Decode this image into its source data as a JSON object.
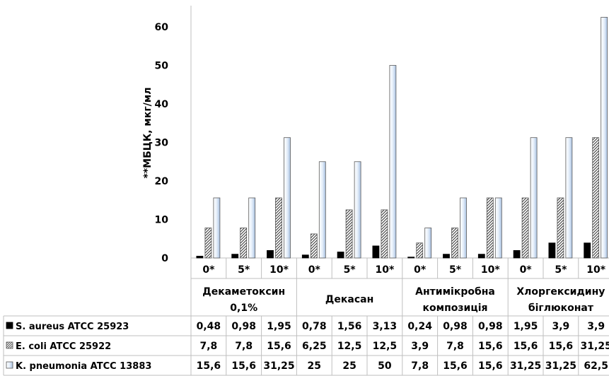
{
  "chart_data": {
    "type": "bar",
    "ylabel": "**МБЦК, мкг/мл",
    "ylim": [
      0,
      60
    ],
    "yticks": [
      0,
      10,
      20,
      30,
      40,
      50,
      60
    ],
    "groups": [
      {
        "label": "Декаметоксин 0,1%",
        "categories": [
          "0*",
          "5*",
          "10*"
        ]
      },
      {
        "label": "Декасан",
        "categories": [
          "0*",
          "5*",
          "10*"
        ]
      },
      {
        "label": "Антимікробна композиція",
        "categories": [
          "0*",
          "5*",
          "10*"
        ]
      },
      {
        "label": "Хлоргексидину біглюконат",
        "categories": [
          "0*",
          "5*",
          "10*"
        ]
      }
    ],
    "series": [
      {
        "name": "S. aureus ATCC 25923",
        "pattern": "solid",
        "color": "#000000",
        "values": [
          0.48,
          0.98,
          1.95,
          0.78,
          1.56,
          3.13,
          0.24,
          0.98,
          0.98,
          1.95,
          3.9,
          3.9
        ],
        "labels": [
          "0,48",
          "0,98",
          "1,95",
          "0,78",
          "1,56",
          "3,13",
          "0,24",
          "0,98",
          "0,98",
          "1,95",
          "3,9",
          "3,9"
        ]
      },
      {
        "name": "E. coli ATCC 25922",
        "pattern": "hatched",
        "color": "#555555",
        "values": [
          7.8,
          7.8,
          15.6,
          6.25,
          12.5,
          12.5,
          3.9,
          7.8,
          15.6,
          15.6,
          15.6,
          31.25
        ],
        "labels": [
          "7,8",
          "7,8",
          "15,6",
          "6,25",
          "12,5",
          "12,5",
          "3,9",
          "7,8",
          "15,6",
          "15,6",
          "15,6",
          "31,25"
        ]
      },
      {
        "name": "K. pneumonia ATCC 13883",
        "pattern": "gradient",
        "color": "#bcd3ee",
        "values": [
          15.6,
          15.6,
          31.25,
          25,
          25,
          50,
          7.8,
          15.6,
          15.6,
          31.25,
          31.25,
          62.5
        ],
        "labels": [
          "15,6",
          "15,6",
          "31,25",
          "25",
          "25",
          "50",
          "7,8",
          "15,6",
          "15,6",
          "31,25",
          "31,25",
          "62,5"
        ]
      }
    ]
  }
}
